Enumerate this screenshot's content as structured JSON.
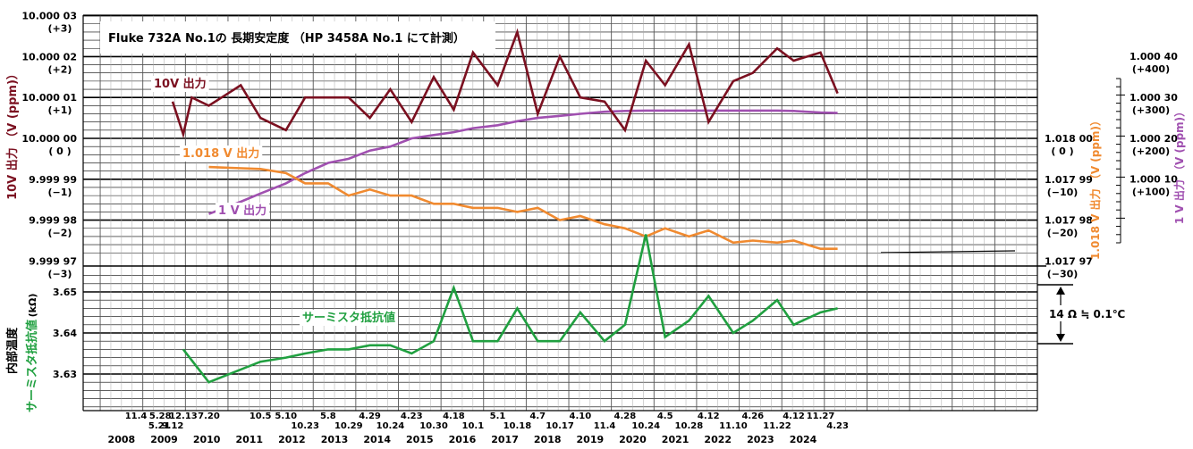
{
  "title": "Fluke 732A No.1の 長期安定度 （HP 3458A No.1 にて計測）",
  "labels": {
    "series_10v": "10V 出力",
    "series_1018v": "1.018 V 出力",
    "series_1v": "1 V 出力",
    "series_therm": "サーミスタ抵抗値",
    "axis_left_top": "10V 出力 （V (ppm)）",
    "axis_left_bottom_a": "内部温度",
    "axis_left_bottom_b": "サーミスタ抵抗値",
    "axis_left_bottom_unit": "(kΩ)",
    "axis_right_1018": "1.018 V 出力 （V (ppm)）",
    "axis_right_1v": "1 V 出力 （V (ppm)）",
    "annotation": "14 Ω ≒ 0.1℃"
  },
  "colors": {
    "series_10v": "#7b1020",
    "series_1018v": "#f08a30",
    "series_1v": "#a050b0",
    "series_therm": "#20a040"
  },
  "chart_data": [
    {
      "type": "line",
      "title": "Fluke 732A No.1の 長期安定度 （HP 3458A No.1 にて計測）",
      "date_ticks": [
        {
          "label": "11.4",
          "x": 2008.84
        },
        {
          "label": "5.21",
          "x": 2009.39
        },
        {
          "label": "5.28",
          "x": 2009.41
        },
        {
          "label": "9.12",
          "x": 2009.7
        },
        {
          "label": "12.13",
          "x": 2009.95
        },
        {
          "label": "7.20",
          "x": 2010.55
        },
        {
          "label": "10.5",
          "x": 2011.76
        },
        {
          "label": "5.10",
          "x": 2012.36
        },
        {
          "label": "10.23",
          "x": 2012.81
        },
        {
          "label": "5.8",
          "x": 2013.35
        },
        {
          "label": "10.29",
          "x": 2013.83
        },
        {
          "label": "4.29",
          "x": 2014.33
        },
        {
          "label": "10.24",
          "x": 2014.81
        },
        {
          "label": "4.23",
          "x": 2015.31
        },
        {
          "label": "10.30",
          "x": 2015.83
        },
        {
          "label": "4.18",
          "x": 2016.3
        },
        {
          "label": "10.1",
          "x": 2016.75
        },
        {
          "label": "5.1",
          "x": 2017.33
        },
        {
          "label": "10.18",
          "x": 2017.79
        },
        {
          "label": "4.7",
          "x": 2018.27
        },
        {
          "label": "10.17",
          "x": 2018.79
        },
        {
          "label": "4.10",
          "x": 2019.27
        },
        {
          "label": "11.4",
          "x": 2019.84
        },
        {
          "label": "4.28",
          "x": 2020.32
        },
        {
          "label": "10.24",
          "x": 2020.81
        },
        {
          "label": "4.5",
          "x": 2021.26
        },
        {
          "label": "10.28",
          "x": 2021.82
        },
        {
          "label": "4.12",
          "x": 2022.28
        },
        {
          "label": "11.10",
          "x": 2022.86
        },
        {
          "label": "4.26",
          "x": 2023.32
        },
        {
          "label": "11.22",
          "x": 2023.89
        },
        {
          "label": "4.12",
          "x": 2024.28
        },
        {
          "label": "11.27",
          "x": 2024.91
        },
        {
          "label": "4.23",
          "x": 2025.31
        }
      ],
      "years": [
        "2008",
        "2009",
        "2010",
        "2011",
        "2012",
        "2013",
        "2014",
        "2015",
        "2016",
        "2017",
        "2018",
        "2019",
        "2020",
        "2021",
        "2022",
        "2023",
        "2024"
      ],
      "xlim": [
        2007.6,
        2030.0
      ],
      "panels": [
        {
          "name": "voltage",
          "ylim": [
            -3.2,
            3.2
          ],
          "left_ticks": [
            {
              "label": "10.000 03",
              "sub": "(+3)",
              "v": 3
            },
            {
              "label": "10.000 02",
              "sub": "(+2)",
              "v": 2
            },
            {
              "label": "10.000 01",
              "sub": "(+1)",
              "v": 1
            },
            {
              "label": "10.000 00",
              "sub": "( 0 )",
              "v": 0
            },
            {
              "label": "9.999 99",
              "sub": "(−1)",
              "v": -1
            },
            {
              "label": "9.999 98",
              "sub": "(−2)",
              "v": -2
            },
            {
              "label": "9.999 97",
              "sub": "(−3)",
              "v": -3
            }
          ],
          "right_ticks_1018": [
            {
              "label": "1.018 00",
              "sub": "( 0 )",
              "v": 0
            },
            {
              "label": "1.017 99",
              "sub": "(−10)",
              "v": -1
            },
            {
              "label": "1.017 98",
              "sub": "(−20)",
              "v": -2
            },
            {
              "label": "1.017 97",
              "sub": "(−30)",
              "v": -3
            }
          ],
          "right_ticks_1v": [
            {
              "label": "1.000 40",
              "sub": "(+400)",
              "v": 1
            },
            {
              "label": "1.000 30",
              "sub": "(+300)",
              "v": 0
            },
            {
              "label": "1.000 20",
              "sub": "(+200)",
              "v": -1
            },
            {
              "label": "1.000 10",
              "sub": "(+100)",
              "v": -2
            }
          ],
          "series": [
            {
              "name": "10V 出力",
              "color_key": "series_10v",
              "x": [
                2009.7,
                2009.95,
                2010.15,
                2010.55,
                2011.3,
                2011.76,
                2012.36,
                2012.81,
                2013.35,
                2013.83,
                2014.33,
                2014.81,
                2015.31,
                2015.83,
                2016.3,
                2016.75,
                2017.33,
                2017.79,
                2018.27,
                2018.79,
                2019.27,
                2019.84,
                2020.32,
                2020.81,
                2021.26,
                2021.82,
                2022.28,
                2022.86,
                2023.32,
                2023.89,
                2024.28,
                2024.91,
                2025.31
              ],
              "values": [
                0.9,
                0.1,
                1.0,
                0.8,
                1.3,
                0.5,
                0.2,
                1.0,
                1.0,
                1.0,
                0.5,
                1.2,
                0.4,
                1.5,
                0.7,
                2.1,
                1.3,
                2.6,
                0.6,
                2.0,
                1.0,
                0.9,
                0.2,
                1.9,
                1.3,
                2.3,
                0.4,
                1.4,
                1.6,
                2.2,
                1.9,
                2.1,
                1.1
              ]
            },
            {
              "name": "1.018 V 出力",
              "color_key": "series_1018v",
              "x": [
                2010.55,
                2011.76,
                2012.36,
                2012.81,
                2013.35,
                2013.83,
                2014.33,
                2014.81,
                2015.31,
                2015.83,
                2016.3,
                2016.75,
                2017.33,
                2017.79,
                2018.27,
                2018.79,
                2019.27,
                2019.84,
                2020.32,
                2020.81,
                2021.26,
                2021.82,
                2022.28,
                2022.86,
                2023.32,
                2023.89,
                2024.28,
                2024.91,
                2025.31
              ],
              "values": [
                -0.7,
                -0.75,
                -0.85,
                -1.1,
                -1.1,
                -1.4,
                -1.25,
                -1.4,
                -1.4,
                -1.6,
                -1.6,
                -1.7,
                -1.7,
                -1.8,
                -1.7,
                -2.0,
                -1.9,
                -2.1,
                -2.2,
                -2.4,
                -2.2,
                -2.4,
                -2.25,
                -2.55,
                -2.5,
                -2.55,
                -2.5,
                -2.7,
                -2.7
              ]
            },
            {
              "name": "1 V 出力",
              "color_key": "series_1v",
              "values_note": "",
              "x": [
                2010.55,
                2011.3,
                2011.76,
                2012.36,
                2012.81,
                2013.35,
                2013.83,
                2014.33,
                2014.81,
                2015.31,
                2015.83,
                2016.3,
                2016.75,
                2017.33,
                2017.79,
                2018.27,
                2018.79,
                2019.27,
                2019.84,
                2020.32,
                2020.81,
                2021.26,
                2021.82,
                2022.28,
                2022.86,
                2023.32,
                2023.89,
                2024.28,
                2024.91,
                2025.31
              ],
              "values": [
                -1.85,
                -1.55,
                -1.35,
                -1.1,
                -0.85,
                -0.6,
                -0.5,
                -0.3,
                -0.2,
                0.0,
                0.08,
                0.15,
                0.25,
                0.32,
                0.42,
                0.5,
                0.55,
                0.6,
                0.65,
                0.67,
                0.68,
                0.68,
                0.68,
                0.68,
                0.68,
                0.68,
                0.68,
                0.67,
                0.63,
                0.62
              ]
            }
          ]
        },
        {
          "name": "thermistor",
          "ylim": [
            3.621,
            3.6685
          ],
          "ylabel": "内部温度 サーミスタ抵抗値 (kΩ)",
          "left_ticks": [
            {
              "label": "3.65",
              "v": 3.65
            },
            {
              "label": "3.64",
              "v": 3.64
            },
            {
              "label": "3.63",
              "v": 3.63
            }
          ],
          "series": [
            {
              "name": "サーミスタ抵抗値",
              "color_key": "series_therm",
              "x": [
                2009.95,
                2010.55,
                2011.76,
                2012.36,
                2012.81,
                2013.35,
                2013.83,
                2014.33,
                2014.81,
                2015.31,
                2015.83,
                2016.3,
                2016.75,
                2017.33,
                2017.79,
                2018.27,
                2018.79,
                2019.27,
                2019.84,
                2020.32,
                2020.81,
                2021.26,
                2021.82,
                2022.28,
                2022.86,
                2023.32,
                2023.89,
                2024.28,
                2024.91,
                2025.31
              ],
              "values": [
                3.636,
                3.628,
                3.633,
                3.634,
                3.635,
                3.636,
                3.636,
                3.637,
                3.637,
                3.635,
                3.638,
                3.651,
                3.638,
                3.638,
                3.646,
                3.638,
                3.638,
                3.645,
                3.638,
                3.642,
                3.664,
                3.639,
                3.643,
                3.649,
                3.64,
                3.643,
                3.648,
                3.642,
                3.645,
                3.646
              ]
            }
          ]
        }
      ]
    }
  ]
}
